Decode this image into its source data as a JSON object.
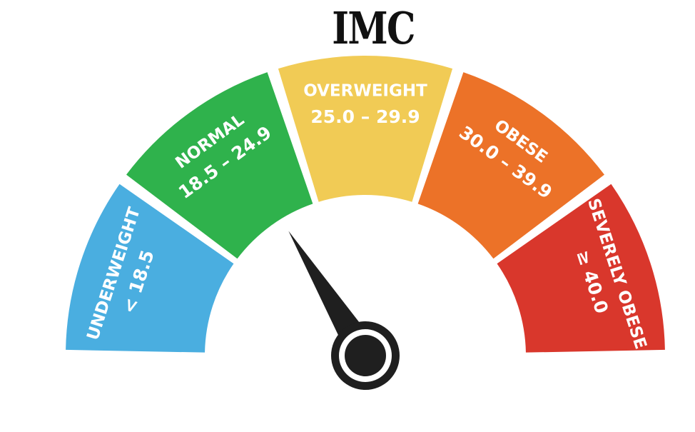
{
  "title": "IMC",
  "segments": [
    {
      "name": "UNDERWEIGHT",
      "range": "< 18.5",
      "color": "#4aaee0"
    },
    {
      "name": "NORMAL",
      "range": "18.5 – 24.9",
      "color": "#2fb24c"
    },
    {
      "name": "OVERWEIGHT",
      "range": "25.0 – 29.9",
      "color": "#f1cb55"
    },
    {
      "name": "OBESE",
      "range": "30.0 – 39.9",
      "color": "#ec7228"
    },
    {
      "name": "SEVERELY OBESE",
      "range": "≥ 40.0",
      "color": "#d9372c"
    }
  ],
  "needle": {
    "indicated_segment": "NORMAL",
    "color": "#1f1f1f"
  }
}
